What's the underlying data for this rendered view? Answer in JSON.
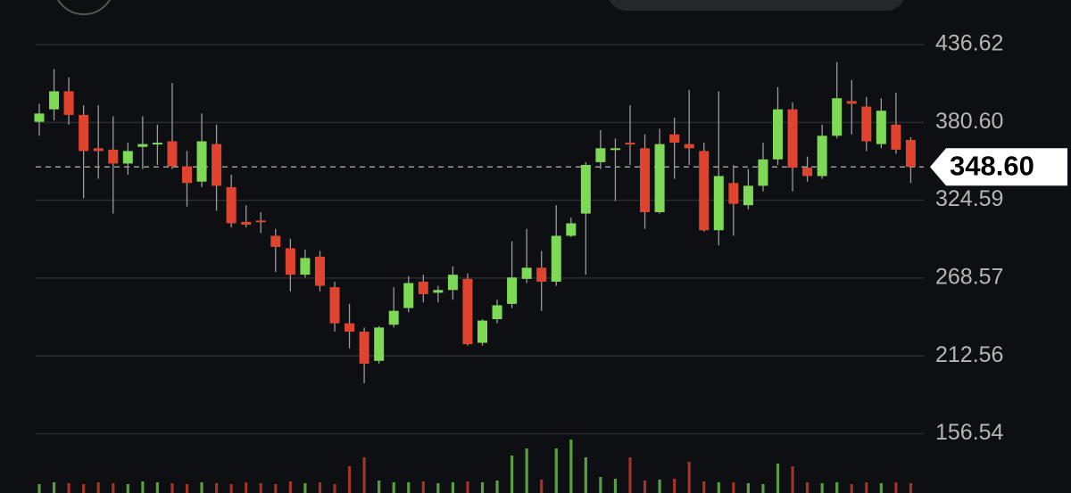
{
  "chart_data": {
    "type": "candlestick",
    "open": [
      381,
      390,
      403,
      386,
      362,
      361,
      351,
      363,
      365,
      367,
      349,
      338,
      365,
      334,
      309,
      310,
      299,
      290,
      271,
      284,
      262,
      236,
      230,
      209,
      235,
      247,
      266,
      258,
      260,
      268,
      222,
      239,
      250,
      268,
      276,
      266,
      299,
      315,
      352,
      362,
      366,
      362,
      316,
      372,
      365,
      360,
      303,
      337,
      321,
      335,
      354,
      390,
      348,
      342,
      371,
      396,
      392,
      365,
      379,
      368
    ],
    "high": [
      394,
      419,
      413,
      393,
      393,
      385,
      366,
      385,
      379,
      409,
      360,
      387,
      379,
      343,
      321,
      316,
      304,
      297,
      289,
      288,
      266,
      250,
      233,
      234,
      262,
      270,
      271,
      263,
      277,
      272,
      239,
      253,
      295,
      304,
      288,
      321,
      312,
      352,
      375,
      369,
      393,
      372,
      376,
      384,
      404,
      366,
      403,
      350,
      347,
      366,
      406,
      395,
      356,
      379,
      424,
      411,
      399,
      398,
      402,
      370
    ],
    "low": [
      371,
      382,
      379,
      326,
      340,
      315,
      343,
      347,
      350,
      347,
      320,
      334,
      317,
      305,
      305,
      301,
      273,
      259,
      269,
      259,
      230,
      218,
      193,
      207,
      233,
      244,
      251,
      251,
      253,
      220,
      220,
      236,
      247,
      265,
      245,
      263,
      298,
      271,
      347,
      324,
      350,
      304,
      315,
      340,
      350,
      302,
      292,
      299,
      318,
      331,
      350,
      331,
      338,
      340,
      369,
      372,
      360,
      362,
      358,
      337
    ],
    "close": [
      387,
      403,
      386,
      360,
      360,
      351,
      360,
      365,
      366,
      349,
      337,
      367,
      335,
      308,
      307,
      309,
      291,
      271,
      283,
      263,
      236,
      230,
      207,
      233,
      245,
      265,
      257,
      260,
      271,
      221,
      238,
      249,
      269,
      276,
      266,
      299,
      308,
      350,
      362,
      362,
      365,
      316,
      365,
      366,
      362,
      303,
      342,
      322,
      335,
      354,
      390,
      348,
      342,
      371,
      398,
      394,
      367,
      389,
      361,
      348.6
    ],
    "volume": [
      10,
      12,
      11,
      10,
      12,
      11,
      10,
      13,
      12,
      11,
      10,
      12,
      11,
      10,
      12,
      11,
      10,
      13,
      11,
      12,
      10,
      30,
      40,
      14,
      12,
      12,
      13,
      11,
      12,
      13,
      12,
      14,
      42,
      50,
      15,
      50,
      60,
      40,
      18,
      16,
      40,
      14,
      15,
      16,
      35,
      13,
      12,
      12,
      11,
      10,
      33,
      30,
      12,
      11,
      12,
      10,
      12,
      11,
      12,
      11
    ],
    "up_color": "#7ed957",
    "down_color": "#e0442f",
    "ylim": [
      113.9,
      468.7
    ],
    "vlim": [
      0,
      80
    ],
    "yticks": [
      436.62,
      {
        "value": 380.6,
        "label": "380.60"
      },
      324.59,
      268.57,
      212.56,
      156.54
    ],
    "current_price": {
      "value": 348.6,
      "label": "348.60"
    },
    "grid": true
  }
}
